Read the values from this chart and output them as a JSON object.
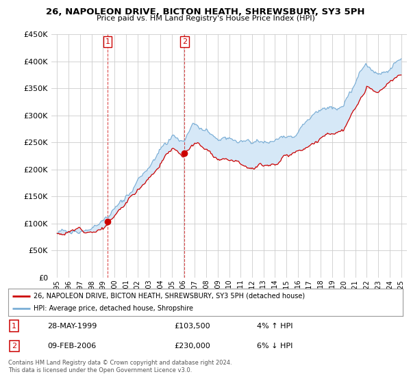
{
  "title": "26, NAPOLEON DRIVE, BICTON HEATH, SHREWSBURY, SY3 5PH",
  "subtitle": "Price paid vs. HM Land Registry's House Price Index (HPI)",
  "legend_line1": "26, NAPOLEON DRIVE, BICTON HEATH, SHREWSBURY, SY3 5PH (detached house)",
  "legend_line2": "HPI: Average price, detached house, Shropshire",
  "footer": "Contains HM Land Registry data © Crown copyright and database right 2024.\nThis data is licensed under the Open Government Licence v3.0.",
  "sale1_date": "28-MAY-1999",
  "sale1_price": "£103,500",
  "sale1_hpi": "4% ↑ HPI",
  "sale2_date": "09-FEB-2006",
  "sale2_price": "£230,000",
  "sale2_hpi": "6% ↓ HPI",
  "sale1_x": 1999.4,
  "sale1_y": 103500,
  "sale2_x": 2006.1,
  "sale2_y": 230000,
  "ylim_min": 0,
  "ylim_max": 450000,
  "xlim_min": 1994.5,
  "xlim_max": 2025.5,
  "red_color": "#cc0000",
  "blue_color": "#7aaed6",
  "fill_color": "#d6e8f7",
  "grid_color": "#cccccc",
  "bg_color": "#ffffff",
  "yticks": [
    0,
    50000,
    100000,
    150000,
    200000,
    250000,
    300000,
    350000,
    400000,
    450000
  ],
  "ytick_labels": [
    "£0",
    "£50K",
    "£100K",
    "£150K",
    "£200K",
    "£250K",
    "£300K",
    "£350K",
    "£400K",
    "£450K"
  ],
  "xticks": [
    1995,
    1996,
    1997,
    1998,
    1999,
    2000,
    2001,
    2002,
    2003,
    2004,
    2005,
    2006,
    2007,
    2008,
    2009,
    2010,
    2011,
    2012,
    2013,
    2014,
    2015,
    2016,
    2017,
    2018,
    2019,
    2020,
    2021,
    2022,
    2023,
    2024,
    2025
  ]
}
